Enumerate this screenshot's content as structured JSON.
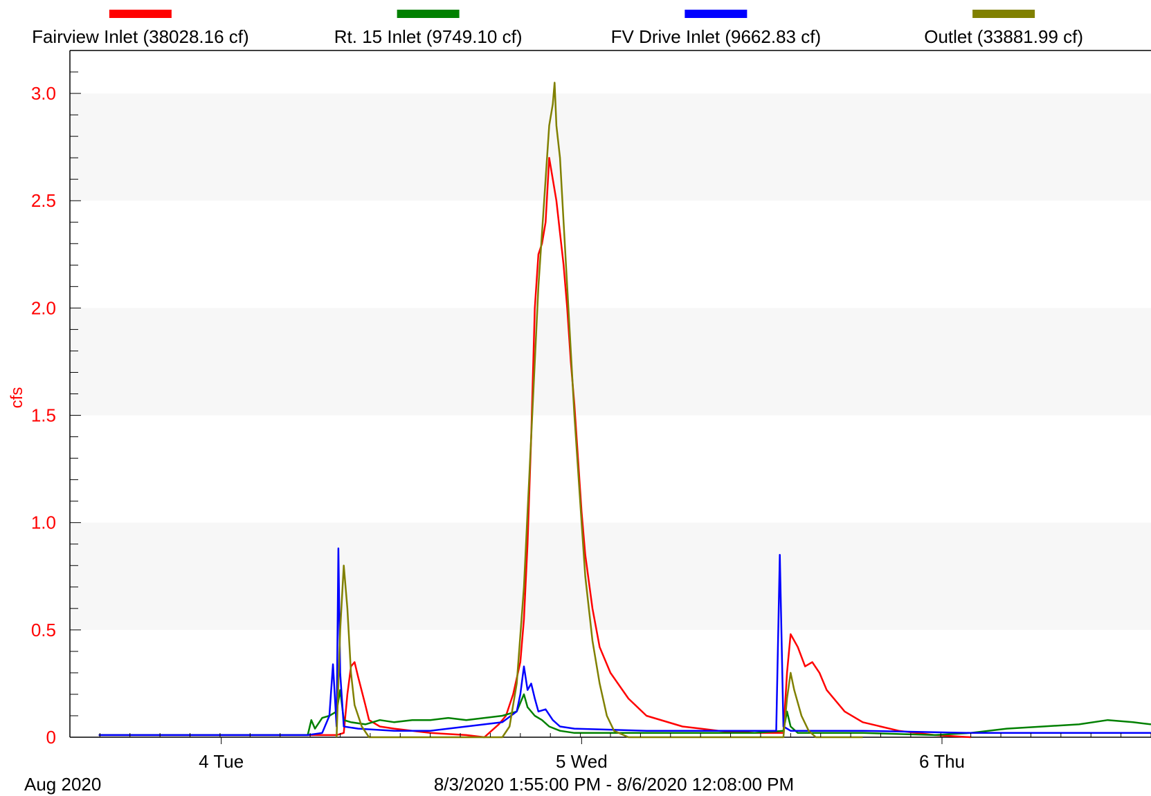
{
  "chart_data": {
    "type": "line",
    "title": "",
    "ylabel": "cfs",
    "xlabel": "",
    "ylim": [
      0,
      3.2
    ],
    "xlim": [
      0,
      3.0
    ],
    "y_ticks": [
      {
        "value": 0,
        "label": "0"
      },
      {
        "value": 0.5,
        "label": "0.5"
      },
      {
        "value": 1.0,
        "label": "1.0"
      },
      {
        "value": 1.5,
        "label": "1.5"
      },
      {
        "value": 2.0,
        "label": "2.0"
      },
      {
        "value": 2.5,
        "label": "2.5"
      },
      {
        "value": 3.0,
        "label": "3.0"
      }
    ],
    "x_ticks": [
      {
        "value": 0.42,
        "label": "4 Tue"
      },
      {
        "value": 1.42,
        "label": "5 Wed"
      },
      {
        "value": 2.42,
        "label": "6 Thu"
      }
    ],
    "month_label": "Aug 2020",
    "date_range": "8/3/2020 1:55:00 PM - 8/6/2020 12:08:00 PM",
    "legend_position": "top",
    "grid": "alternating horizontal bands",
    "colors": {
      "ylabel": "#ff0000",
      "band": "#f7f7f7"
    },
    "series": [
      {
        "name": "Fairview Inlet (38028.16 cf)",
        "color": "#ff0000",
        "points": [
          [
            0.08,
            0.01
          ],
          [
            0.66,
            0.01
          ],
          [
            0.74,
            0.01
          ],
          [
            0.76,
            0.02
          ],
          [
            0.77,
            0.2
          ],
          [
            0.78,
            0.33
          ],
          [
            0.79,
            0.35
          ],
          [
            0.8,
            0.28
          ],
          [
            0.82,
            0.15
          ],
          [
            0.83,
            0.08
          ],
          [
            0.86,
            0.05
          ],
          [
            0.9,
            0.04
          ],
          [
            0.95,
            0.03
          ],
          [
            1.0,
            0.02
          ],
          [
            1.1,
            0.01
          ],
          [
            1.15,
            0.0
          ],
          [
            1.17,
            0.03
          ],
          [
            1.19,
            0.06
          ],
          [
            1.21,
            0.1
          ],
          [
            1.23,
            0.2
          ],
          [
            1.25,
            0.35
          ],
          [
            1.26,
            0.55
          ],
          [
            1.27,
            0.9
          ],
          [
            1.28,
            1.4
          ],
          [
            1.29,
            2.0
          ],
          [
            1.3,
            2.25
          ],
          [
            1.31,
            2.3
          ],
          [
            1.32,
            2.4
          ],
          [
            1.33,
            2.7
          ],
          [
            1.34,
            2.6
          ],
          [
            1.35,
            2.5
          ],
          [
            1.36,
            2.35
          ],
          [
            1.37,
            2.2
          ],
          [
            1.38,
            2.0
          ],
          [
            1.39,
            1.75
          ],
          [
            1.4,
            1.55
          ],
          [
            1.41,
            1.3
          ],
          [
            1.42,
            1.05
          ],
          [
            1.43,
            0.85
          ],
          [
            1.45,
            0.6
          ],
          [
            1.47,
            0.42
          ],
          [
            1.5,
            0.3
          ],
          [
            1.55,
            0.18
          ],
          [
            1.6,
            0.1
          ],
          [
            1.7,
            0.05
          ],
          [
            1.8,
            0.03
          ],
          [
            1.9,
            0.02
          ],
          [
            1.98,
            0.02
          ],
          [
            1.99,
            0.3
          ],
          [
            2.0,
            0.48
          ],
          [
            2.02,
            0.42
          ],
          [
            2.04,
            0.33
          ],
          [
            2.06,
            0.35
          ],
          [
            2.08,
            0.3
          ],
          [
            2.1,
            0.22
          ],
          [
            2.15,
            0.12
          ],
          [
            2.2,
            0.07
          ],
          [
            2.3,
            0.03
          ],
          [
            2.4,
            0.01
          ],
          [
            2.5,
            0.0
          ]
        ]
      },
      {
        "name": "Rt. 15 Inlet (9749.10 cf)",
        "color": "#008000",
        "points": [
          [
            0.08,
            0.01
          ],
          [
            0.66,
            0.01
          ],
          [
            0.67,
            0.08
          ],
          [
            0.68,
            0.04
          ],
          [
            0.7,
            0.09
          ],
          [
            0.72,
            0.1
          ],
          [
            0.74,
            0.12
          ],
          [
            0.75,
            0.22
          ],
          [
            0.76,
            0.08
          ],
          [
            0.78,
            0.07
          ],
          [
            0.82,
            0.06
          ],
          [
            0.86,
            0.08
          ],
          [
            0.9,
            0.07
          ],
          [
            0.95,
            0.08
          ],
          [
            1.0,
            0.08
          ],
          [
            1.05,
            0.09
          ],
          [
            1.1,
            0.08
          ],
          [
            1.15,
            0.09
          ],
          [
            1.2,
            0.1
          ],
          [
            1.24,
            0.12
          ],
          [
            1.26,
            0.2
          ],
          [
            1.27,
            0.14
          ],
          [
            1.29,
            0.1
          ],
          [
            1.31,
            0.08
          ],
          [
            1.33,
            0.05
          ],
          [
            1.36,
            0.03
          ],
          [
            1.4,
            0.02
          ],
          [
            1.6,
            0.02
          ],
          [
            1.9,
            0.02
          ],
          [
            1.98,
            0.03
          ],
          [
            1.99,
            0.12
          ],
          [
            2.0,
            0.05
          ],
          [
            2.02,
            0.02
          ],
          [
            2.2,
            0.02
          ],
          [
            2.4,
            0.01
          ],
          [
            2.5,
            0.02
          ],
          [
            2.6,
            0.04
          ],
          [
            2.7,
            0.05
          ],
          [
            2.8,
            0.06
          ],
          [
            2.88,
            0.08
          ],
          [
            2.95,
            0.07
          ],
          [
            3.0,
            0.06
          ]
        ]
      },
      {
        "name": "FV Drive Inlet (9662.83 cf)",
        "color": "#0000ff",
        "points": [
          [
            0.08,
            0.01
          ],
          [
            0.66,
            0.01
          ],
          [
            0.7,
            0.02
          ],
          [
            0.72,
            0.1
          ],
          [
            0.73,
            0.34
          ],
          [
            0.74,
            0.05
          ],
          [
            0.745,
            0.88
          ],
          [
            0.75,
            0.3
          ],
          [
            0.76,
            0.05
          ],
          [
            0.8,
            0.04
          ],
          [
            0.9,
            0.03
          ],
          [
            1.0,
            0.03
          ],
          [
            1.1,
            0.05
          ],
          [
            1.15,
            0.06
          ],
          [
            1.2,
            0.07
          ],
          [
            1.24,
            0.12
          ],
          [
            1.25,
            0.2
          ],
          [
            1.26,
            0.33
          ],
          [
            1.27,
            0.22
          ],
          [
            1.28,
            0.25
          ],
          [
            1.29,
            0.18
          ],
          [
            1.3,
            0.12
          ],
          [
            1.32,
            0.13
          ],
          [
            1.34,
            0.08
          ],
          [
            1.36,
            0.05
          ],
          [
            1.4,
            0.04
          ],
          [
            1.6,
            0.03
          ],
          [
            1.8,
            0.03
          ],
          [
            1.96,
            0.03
          ],
          [
            1.97,
            0.85
          ],
          [
            1.98,
            0.05
          ],
          [
            2.0,
            0.03
          ],
          [
            2.2,
            0.03
          ],
          [
            2.5,
            0.02
          ],
          [
            2.8,
            0.02
          ],
          [
            3.0,
            0.02
          ]
        ]
      },
      {
        "name": "Outlet (33881.99 cf)",
        "color": "#808000",
        "points": [
          [
            0.74,
            0.0
          ],
          [
            0.75,
            0.5
          ],
          [
            0.76,
            0.8
          ],
          [
            0.77,
            0.6
          ],
          [
            0.78,
            0.3
          ],
          [
            0.79,
            0.15
          ],
          [
            0.81,
            0.05
          ],
          [
            0.83,
            0.0
          ],
          [
            1.2,
            0.0
          ],
          [
            1.22,
            0.05
          ],
          [
            1.24,
            0.25
          ],
          [
            1.26,
            0.7
          ],
          [
            1.28,
            1.4
          ],
          [
            1.3,
            2.1
          ],
          [
            1.32,
            2.6
          ],
          [
            1.33,
            2.85
          ],
          [
            1.34,
            2.95
          ],
          [
            1.345,
            3.05
          ],
          [
            1.35,
            2.85
          ],
          [
            1.36,
            2.7
          ],
          [
            1.37,
            2.4
          ],
          [
            1.38,
            2.1
          ],
          [
            1.39,
            1.8
          ],
          [
            1.4,
            1.5
          ],
          [
            1.41,
            1.25
          ],
          [
            1.42,
            1.0
          ],
          [
            1.43,
            0.75
          ],
          [
            1.45,
            0.45
          ],
          [
            1.47,
            0.25
          ],
          [
            1.49,
            0.1
          ],
          [
            1.51,
            0.03
          ],
          [
            1.55,
            0.0
          ],
          [
            1.98,
            0.0
          ],
          [
            1.99,
            0.18
          ],
          [
            2.0,
            0.3
          ],
          [
            2.01,
            0.22
          ],
          [
            2.03,
            0.1
          ],
          [
            2.05,
            0.03
          ],
          [
            2.07,
            0.0
          ],
          [
            2.2,
            0.0
          ]
        ]
      }
    ]
  }
}
